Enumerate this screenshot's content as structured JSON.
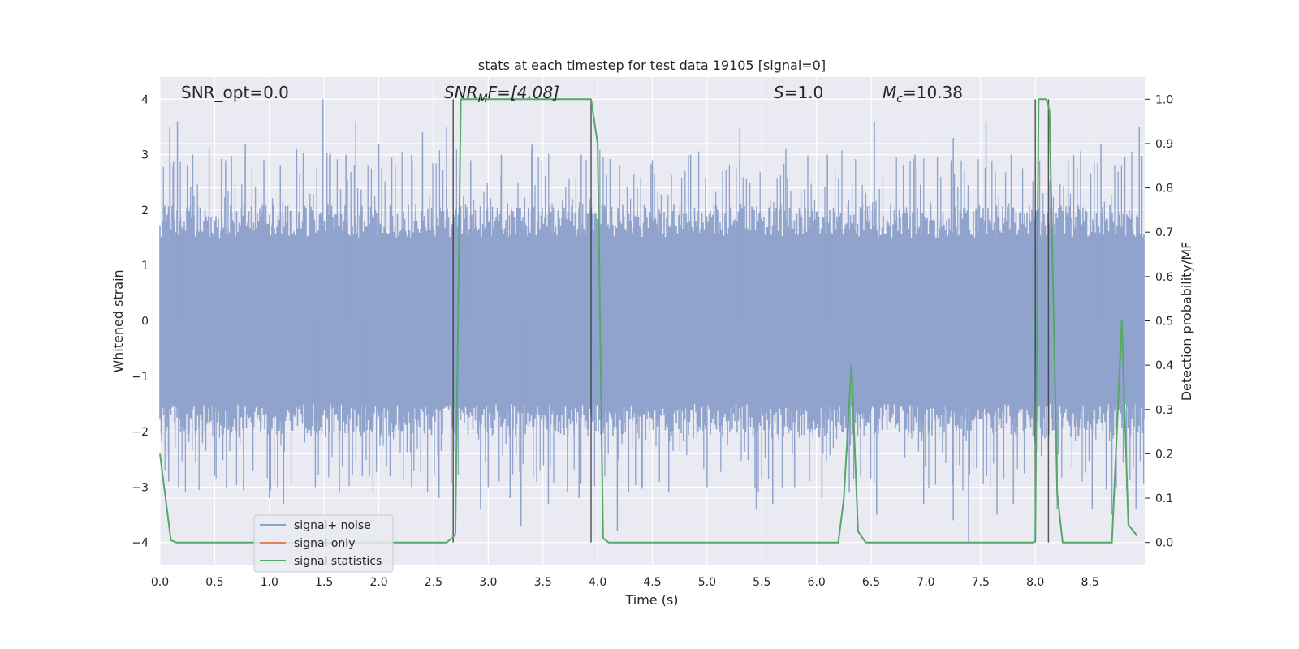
{
  "chart_data": {
    "type": "line",
    "title": "stats at each timestep for test data 19105 [signal=0]",
    "xlabel": "Time (s)",
    "ylabel_left": "Whitened strain",
    "ylabel_right": "Detection probability/MF",
    "xlim": [
      0.0,
      9.0
    ],
    "ylim_left": [
      -4.4,
      4.4
    ],
    "ylim_right": [
      -0.05,
      1.05
    ],
    "x_ticks": [
      "0.0",
      "0.5",
      "1.0",
      "1.5",
      "2.0",
      "2.5",
      "3.0",
      "3.5",
      "4.0",
      "4.5",
      "5.0",
      "5.5",
      "6.0",
      "6.5",
      "7.0",
      "7.5",
      "8.0",
      "8.5"
    ],
    "y_left_ticks": [
      "4",
      "3",
      "2",
      "1",
      "0",
      "−1",
      "−2",
      "−3",
      "−4"
    ],
    "y_right_ticks": [
      "1.0",
      "0.9",
      "0.8",
      "0.7",
      "0.6",
      "0.5",
      "0.4",
      "0.3",
      "0.2",
      "0.1",
      "0.0"
    ],
    "grid": true,
    "annotations": {
      "snr_opt": "SNR_opt=0.0",
      "snr_mf": "SNR_MF=[4.08]",
      "s": "S=1.0",
      "mc": "M_c=10.38"
    },
    "legend": {
      "placement": "lower-left",
      "entries": [
        "signal+ noise",
        "signal only",
        "signal statistics"
      ]
    },
    "colors": {
      "noise": "#8fa3cc",
      "signal_only": "#dd8452",
      "statistics": "#55a868",
      "background": "#eaeaf2",
      "grid": "#ffffff",
      "vlines": "#333333"
    },
    "vertical_lines": [
      {
        "x": 2.68,
        "ymin": -4.0,
        "ymax": 4.0
      },
      {
        "x": 3.94,
        "ymin": -4.0,
        "ymax": 4.0
      },
      {
        "x": 8.0,
        "ymin": -4.0,
        "ymax": 4.0
      },
      {
        "x": 8.12,
        "ymin": -4.0,
        "ymax": 4.0
      }
    ],
    "series": [
      {
        "name": "signal+ noise",
        "noise_envelope": {
          "typical_abs": 1.6,
          "peak_abs": 4.0
        },
        "spikes": [
          {
            "x": 0.09,
            "y": 3.5
          },
          {
            "x": 0.12,
            "y": 2.8
          },
          {
            "x": 0.16,
            "y": 3.6
          },
          {
            "x": 0.3,
            "y": 3.0
          },
          {
            "x": 0.45,
            "y": 3.1
          },
          {
            "x": 0.6,
            "y": 2.9
          },
          {
            "x": 0.78,
            "y": 3.2
          },
          {
            "x": 0.95,
            "y": 2.9
          },
          {
            "x": 1.1,
            "y": 2.8
          },
          {
            "x": 1.25,
            "y": 3.1
          },
          {
            "x": 1.49,
            "y": 4.0
          },
          {
            "x": 1.55,
            "y": 3.0
          },
          {
            "x": 1.7,
            "y": 3.0
          },
          {
            "x": 1.79,
            "y": 3.6
          },
          {
            "x": 2.0,
            "y": 3.2
          },
          {
            "x": 2.3,
            "y": 3.0
          },
          {
            "x": 2.4,
            "y": 3.4
          },
          {
            "x": 2.62,
            "y": 3.5
          },
          {
            "x": 2.84,
            "y": 2.9
          },
          {
            "x": 3.12,
            "y": 3.0
          },
          {
            "x": 3.4,
            "y": 3.2
          },
          {
            "x": 3.85,
            "y": 3.0
          },
          {
            "x": 4.2,
            "y": 2.8
          },
          {
            "x": 4.5,
            "y": 2.9
          },
          {
            "x": 4.85,
            "y": 3.0
          },
          {
            "x": 5.3,
            "y": 3.5
          },
          {
            "x": 5.72,
            "y": 3.1
          },
          {
            "x": 6.1,
            "y": 3.0
          },
          {
            "x": 6.53,
            "y": 3.6
          },
          {
            "x": 6.9,
            "y": 3.0
          },
          {
            "x": 7.25,
            "y": 3.3
          },
          {
            "x": 7.55,
            "y": 3.6
          },
          {
            "x": 7.78,
            "y": 3.0
          },
          {
            "x": 8.3,
            "y": 2.9
          },
          {
            "x": 8.6,
            "y": 3.2
          },
          {
            "x": 8.95,
            "y": 3.5
          },
          {
            "x": 0.08,
            "y": -2.9
          },
          {
            "x": 0.17,
            "y": -3.0
          },
          {
            "x": 0.5,
            "y": -2.8
          },
          {
            "x": 0.85,
            "y": -2.7
          },
          {
            "x": 1.0,
            "y": -3.2
          },
          {
            "x": 1.13,
            "y": -3.3
          },
          {
            "x": 1.42,
            "y": -3.0
          },
          {
            "x": 1.64,
            "y": -3.1
          },
          {
            "x": 1.85,
            "y": -2.8
          },
          {
            "x": 2.3,
            "y": -3.0
          },
          {
            "x": 2.55,
            "y": -3.2
          },
          {
            "x": 2.93,
            "y": -3.4
          },
          {
            "x": 3.0,
            "y": -3.0
          },
          {
            "x": 3.2,
            "y": -3.2
          },
          {
            "x": 3.3,
            "y": -3.7
          },
          {
            "x": 3.55,
            "y": -3.3
          },
          {
            "x": 3.83,
            "y": -3.2
          },
          {
            "x": 4.18,
            "y": -3.8
          },
          {
            "x": 4.4,
            "y": -3.0
          },
          {
            "x": 4.65,
            "y": -3.1
          },
          {
            "x": 5.0,
            "y": -3.0
          },
          {
            "x": 5.45,
            "y": -3.4
          },
          {
            "x": 5.6,
            "y": -3.3
          },
          {
            "x": 5.8,
            "y": -3.0
          },
          {
            "x": 6.05,
            "y": -3.2
          },
          {
            "x": 6.3,
            "y": -3.1
          },
          {
            "x": 6.55,
            "y": -3.5
          },
          {
            "x": 6.98,
            "y": -3.3
          },
          {
            "x": 7.25,
            "y": -3.6
          },
          {
            "x": 7.39,
            "y": -4.0
          },
          {
            "x": 7.65,
            "y": -3.5
          },
          {
            "x": 7.8,
            "y": -3.3
          },
          {
            "x": 8.2,
            "y": -3.4
          },
          {
            "x": 8.52,
            "y": -3.4
          },
          {
            "x": 8.7,
            "y": -3.5
          },
          {
            "x": 8.92,
            "y": -3.4
          }
        ]
      },
      {
        "name": "signal only",
        "x": [
          0.0,
          9.0
        ],
        "y": [
          0.0,
          0.0
        ]
      },
      {
        "name": "signal statistics",
        "x": [
          0.0,
          0.1,
          0.15,
          2.62,
          2.68,
          2.7,
          2.75,
          3.9,
          3.94,
          4.0,
          4.05,
          4.1,
          6.2,
          6.25,
          6.32,
          6.38,
          6.45,
          7.98,
          8.0,
          8.03,
          8.07,
          8.1,
          8.13,
          8.2,
          8.25,
          8.7,
          8.79,
          8.85,
          8.93
        ],
        "y": [
          0.2,
          0.005,
          0.0,
          0.0,
          0.012,
          0.02,
          1.0,
          1.0,
          1.0,
          0.9,
          0.01,
          0.0,
          0.0,
          0.1,
          0.4,
          0.025,
          0.0,
          0.0,
          0.005,
          1.0,
          1.0,
          1.0,
          0.975,
          0.11,
          0.0,
          0.0,
          0.5,
          0.04,
          0.015
        ]
      }
    ]
  }
}
